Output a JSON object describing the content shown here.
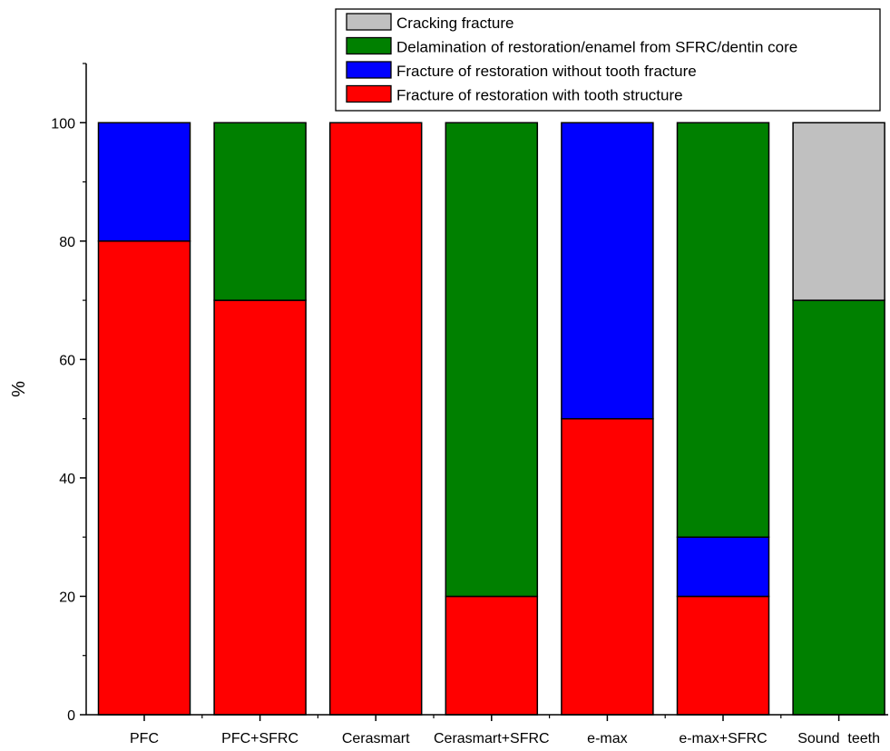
{
  "chart_data": {
    "type": "bar",
    "stacked": true,
    "title": "",
    "xlabel": "",
    "ylabel": "%",
    "ylim": [
      0,
      110
    ],
    "yticks": [
      0,
      20,
      40,
      60,
      80,
      100
    ],
    "grid": false,
    "legend_position": "top-right",
    "categories": [
      "PFC",
      "PFC+SFRC",
      "Cerasmart",
      "Cerasmart+SFRC",
      "e-max",
      "e-max+SFRC",
      "Sound  teeth"
    ],
    "series": [
      {
        "name": "Fracture of restoration with tooth structure",
        "color": "#ff0000",
        "values": [
          80,
          70,
          100,
          20,
          50,
          20,
          0
        ]
      },
      {
        "name": "Fracture of restoration without tooth fracture",
        "color": "#0000ff",
        "values": [
          20,
          0,
          0,
          0,
          50,
          10,
          0
        ]
      },
      {
        "name": "Delamination of restoration/enamel from SFRC/dentin core",
        "color": "#008000",
        "values": [
          0,
          30,
          0,
          80,
          0,
          70,
          70
        ]
      },
      {
        "name": "Cracking fracture",
        "color": "#c0c0c0",
        "values": [
          0,
          0,
          0,
          0,
          0,
          0,
          30
        ]
      }
    ],
    "legend_order": [
      3,
      2,
      1,
      0
    ]
  }
}
